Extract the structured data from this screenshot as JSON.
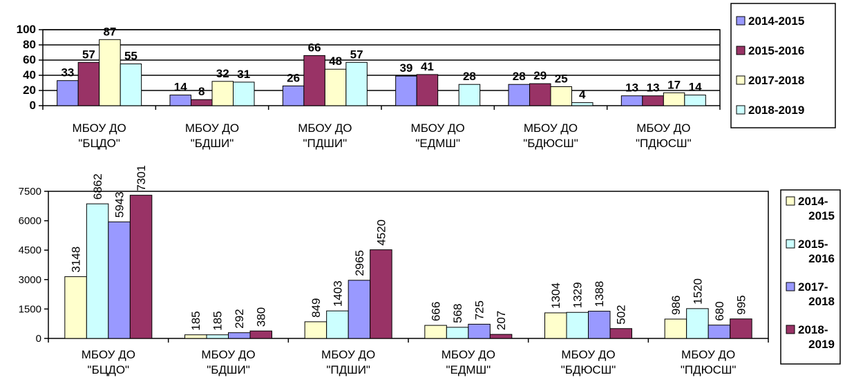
{
  "chart_data": [
    {
      "type": "bar",
      "categories": [
        [
          "МБОУ ДО",
          "\"БЦДО\""
        ],
        [
          "МБОУ ДО",
          "\"БДШИ\""
        ],
        [
          "МБОУ ДО",
          "\"ПДШИ\""
        ],
        [
          "МБОУ ДО",
          "\"ЕДМШ\""
        ],
        [
          "МБОУ ДО",
          "\"БДЮСШ\""
        ],
        [
          "МБОУ ДО",
          "\"ПДЮСШ\""
        ]
      ],
      "series": [
        {
          "name": "2014-2015",
          "color": "#9999ff",
          "values": [
            33,
            14,
            26,
            39,
            28,
            13
          ]
        },
        {
          "name": "2015-2016",
          "color": "#993366",
          "values": [
            57,
            8,
            66,
            41,
            29,
            13
          ]
        },
        {
          "name": "2017-2018",
          "color": "#ffffcc",
          "values": [
            87,
            32,
            48,
            null,
            25,
            17
          ]
        },
        {
          "name": "2018-2019",
          "color": "#ccffff",
          "values": [
            55,
            31,
            57,
            28,
            4,
            14
          ]
        }
      ],
      "ylim": [
        0,
        100
      ],
      "yticks": [
        0,
        20,
        40,
        60,
        80,
        100
      ],
      "grid": true,
      "legend": "right",
      "data_labels": true
    },
    {
      "type": "bar",
      "categories": [
        [
          "МБОУ ДО",
          "\"БЦДО\""
        ],
        [
          "МБОУ ДО",
          "\"БДШИ\""
        ],
        [
          "МБОУ ДО",
          "\"ПДШИ\""
        ],
        [
          "МБОУ ДО",
          "\"ЕДМШ\""
        ],
        [
          "МБОУ ДО",
          "\"БДЮСШ\""
        ],
        [
          "МБОУ ДО",
          "\"ПДЮСШ\""
        ]
      ],
      "series": [
        {
          "name": [
            "2014-",
            "2015"
          ],
          "color": "#ffffcc",
          "values": [
            3148,
            185,
            849,
            666,
            1304,
            986
          ]
        },
        {
          "name": [
            "2015-",
            "2016"
          ],
          "color": "#ccffff",
          "values": [
            6862,
            185,
            1403,
            568,
            1329,
            1520
          ]
        },
        {
          "name": [
            "2017-",
            "2018"
          ],
          "color": "#9999ff",
          "values": [
            5943,
            292,
            2965,
            725,
            1388,
            680
          ]
        },
        {
          "name": [
            "2018-",
            "2019"
          ],
          "color": "#993366",
          "values": [
            7301,
            380,
            4520,
            207,
            502,
            995
          ]
        }
      ],
      "ylim": [
        0,
        7500
      ],
      "yticks": [
        0,
        1500,
        3000,
        4500,
        6000,
        7500
      ],
      "grid": false,
      "legend": "right",
      "data_labels": true
    }
  ]
}
